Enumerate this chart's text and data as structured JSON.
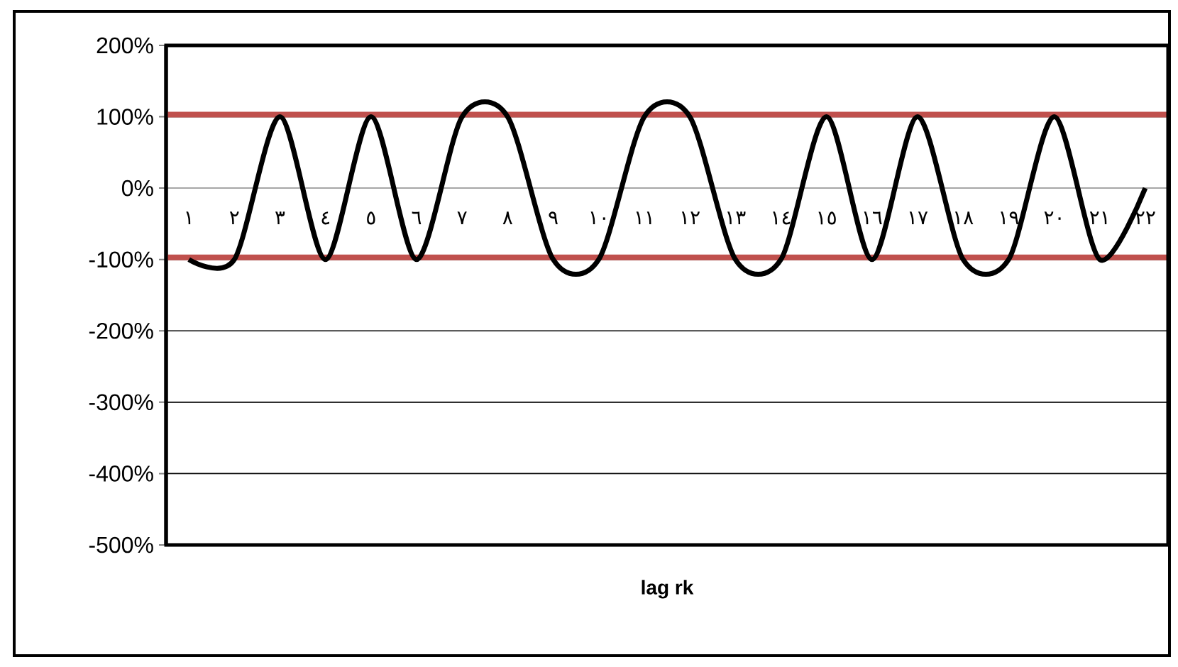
{
  "chart_data": {
    "type": "line",
    "xlabel": "lag rk",
    "categories": [
      "١",
      "٢",
      "٣",
      "٤",
      "٥",
      "٦",
      "٧",
      "٨",
      "٩",
      "١٠",
      "١١",
      "١٢",
      "١٣",
      "١٤",
      "١٥",
      "١٦",
      "١٧",
      "١٨",
      "١٩",
      "٢٠",
      "٢١",
      "٢٢"
    ],
    "series": [
      {
        "color": "#000000",
        "values": [
          -100,
          -100,
          100,
          -100,
          100,
          -100,
          100,
          100,
          -100,
          -100,
          100,
          100,
          -100,
          -100,
          100,
          -100,
          100,
          -100,
          -100,
          100,
          -100,
          0
        ]
      }
    ],
    "ylim": [
      -500,
      200
    ],
    "yticks": [
      {
        "value": -500,
        "label": "-500%"
      },
      {
        "value": -400,
        "label": "-400%"
      },
      {
        "value": -300,
        "label": "-300%"
      },
      {
        "value": -200,
        "label": "-200%"
      },
      {
        "value": -100,
        "label": "-100%"
      },
      {
        "value": 0,
        "label": "0%"
      },
      {
        "value": 100,
        "label": "100%"
      },
      {
        "value": 200,
        "label": "200%"
      }
    ],
    "grid": "y",
    "ref_lines": [
      {
        "axis": "y",
        "value": 103,
        "color": "#c0504d"
      },
      {
        "axis": "y",
        "value": -97,
        "color": "#c0504d"
      }
    ]
  }
}
